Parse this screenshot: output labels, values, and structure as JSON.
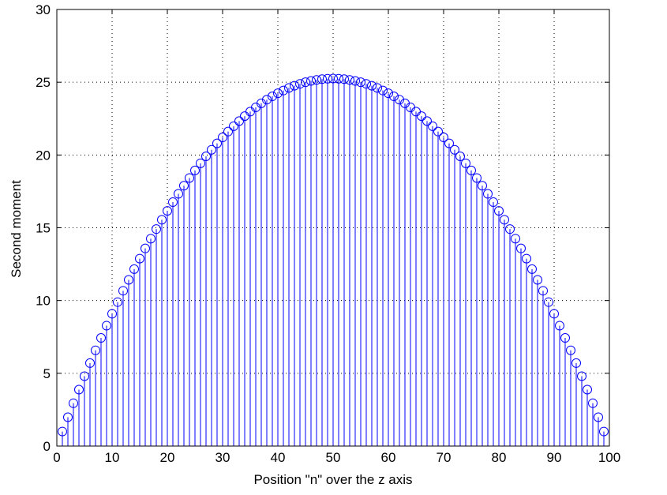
{
  "chart_data": {
    "type": "stem",
    "xlabel": "Position \"n\" over the z axis",
    "ylabel": "Second moment",
    "color": "#0000ff",
    "grid": true,
    "xlim": [
      0,
      100
    ],
    "xticks": [
      0,
      10,
      20,
      30,
      40,
      50,
      60,
      70,
      80,
      90,
      100
    ],
    "ylim": [
      0,
      30
    ],
    "yticks": [
      0,
      5,
      10,
      15,
      20,
      25,
      30
    ],
    "x": [
      1,
      2,
      3,
      4,
      5,
      6,
      7,
      8,
      9,
      10,
      11,
      12,
      13,
      14,
      15,
      16,
      17,
      18,
      19,
      20,
      21,
      22,
      23,
      24,
      25,
      26,
      27,
      28,
      29,
      30,
      31,
      32,
      33,
      34,
      35,
      36,
      37,
      38,
      39,
      40,
      41,
      42,
      43,
      44,
      45,
      46,
      47,
      48,
      49,
      50,
      51,
      52,
      53,
      54,
      55,
      56,
      57,
      58,
      59,
      60,
      61,
      62,
      63,
      64,
      65,
      66,
      67,
      68,
      69,
      70,
      71,
      72,
      73,
      74,
      75,
      76,
      77,
      78,
      79,
      80,
      81,
      82,
      83,
      84,
      85,
      86,
      87,
      88,
      89,
      90,
      91,
      92,
      93,
      94,
      95,
      96,
      97,
      98,
      99
    ],
    "values": [
      1.0,
      1.98,
      2.94,
      3.88,
      4.8,
      5.7,
      6.58,
      7.43,
      8.27,
      9.09,
      9.89,
      10.67,
      11.42,
      12.16,
      12.88,
      13.58,
      14.25,
      14.91,
      15.55,
      16.16,
      16.76,
      17.33,
      17.89,
      18.42,
      18.94,
      19.43,
      19.91,
      20.36,
      20.8,
      21.21,
      21.61,
      21.98,
      22.33,
      22.67,
      22.98,
      23.27,
      23.55,
      23.8,
      24.03,
      24.24,
      24.43,
      24.61,
      24.76,
      24.89,
      25.0,
      25.09,
      25.16,
      25.21,
      25.24,
      25.25,
      25.24,
      25.21,
      25.16,
      25.09,
      25.0,
      24.89,
      24.76,
      24.61,
      24.43,
      24.24,
      24.03,
      23.8,
      23.55,
      23.27,
      22.98,
      22.67,
      22.33,
      21.98,
      21.61,
      21.21,
      20.8,
      20.36,
      19.91,
      19.43,
      18.94,
      18.42,
      17.89,
      17.33,
      16.76,
      16.16,
      15.55,
      14.91,
      14.25,
      13.58,
      12.88,
      12.16,
      11.42,
      10.67,
      9.89,
      9.09,
      8.27,
      7.43,
      6.58,
      5.7,
      4.8,
      3.88,
      2.94,
      1.98,
      1.0
    ]
  }
}
